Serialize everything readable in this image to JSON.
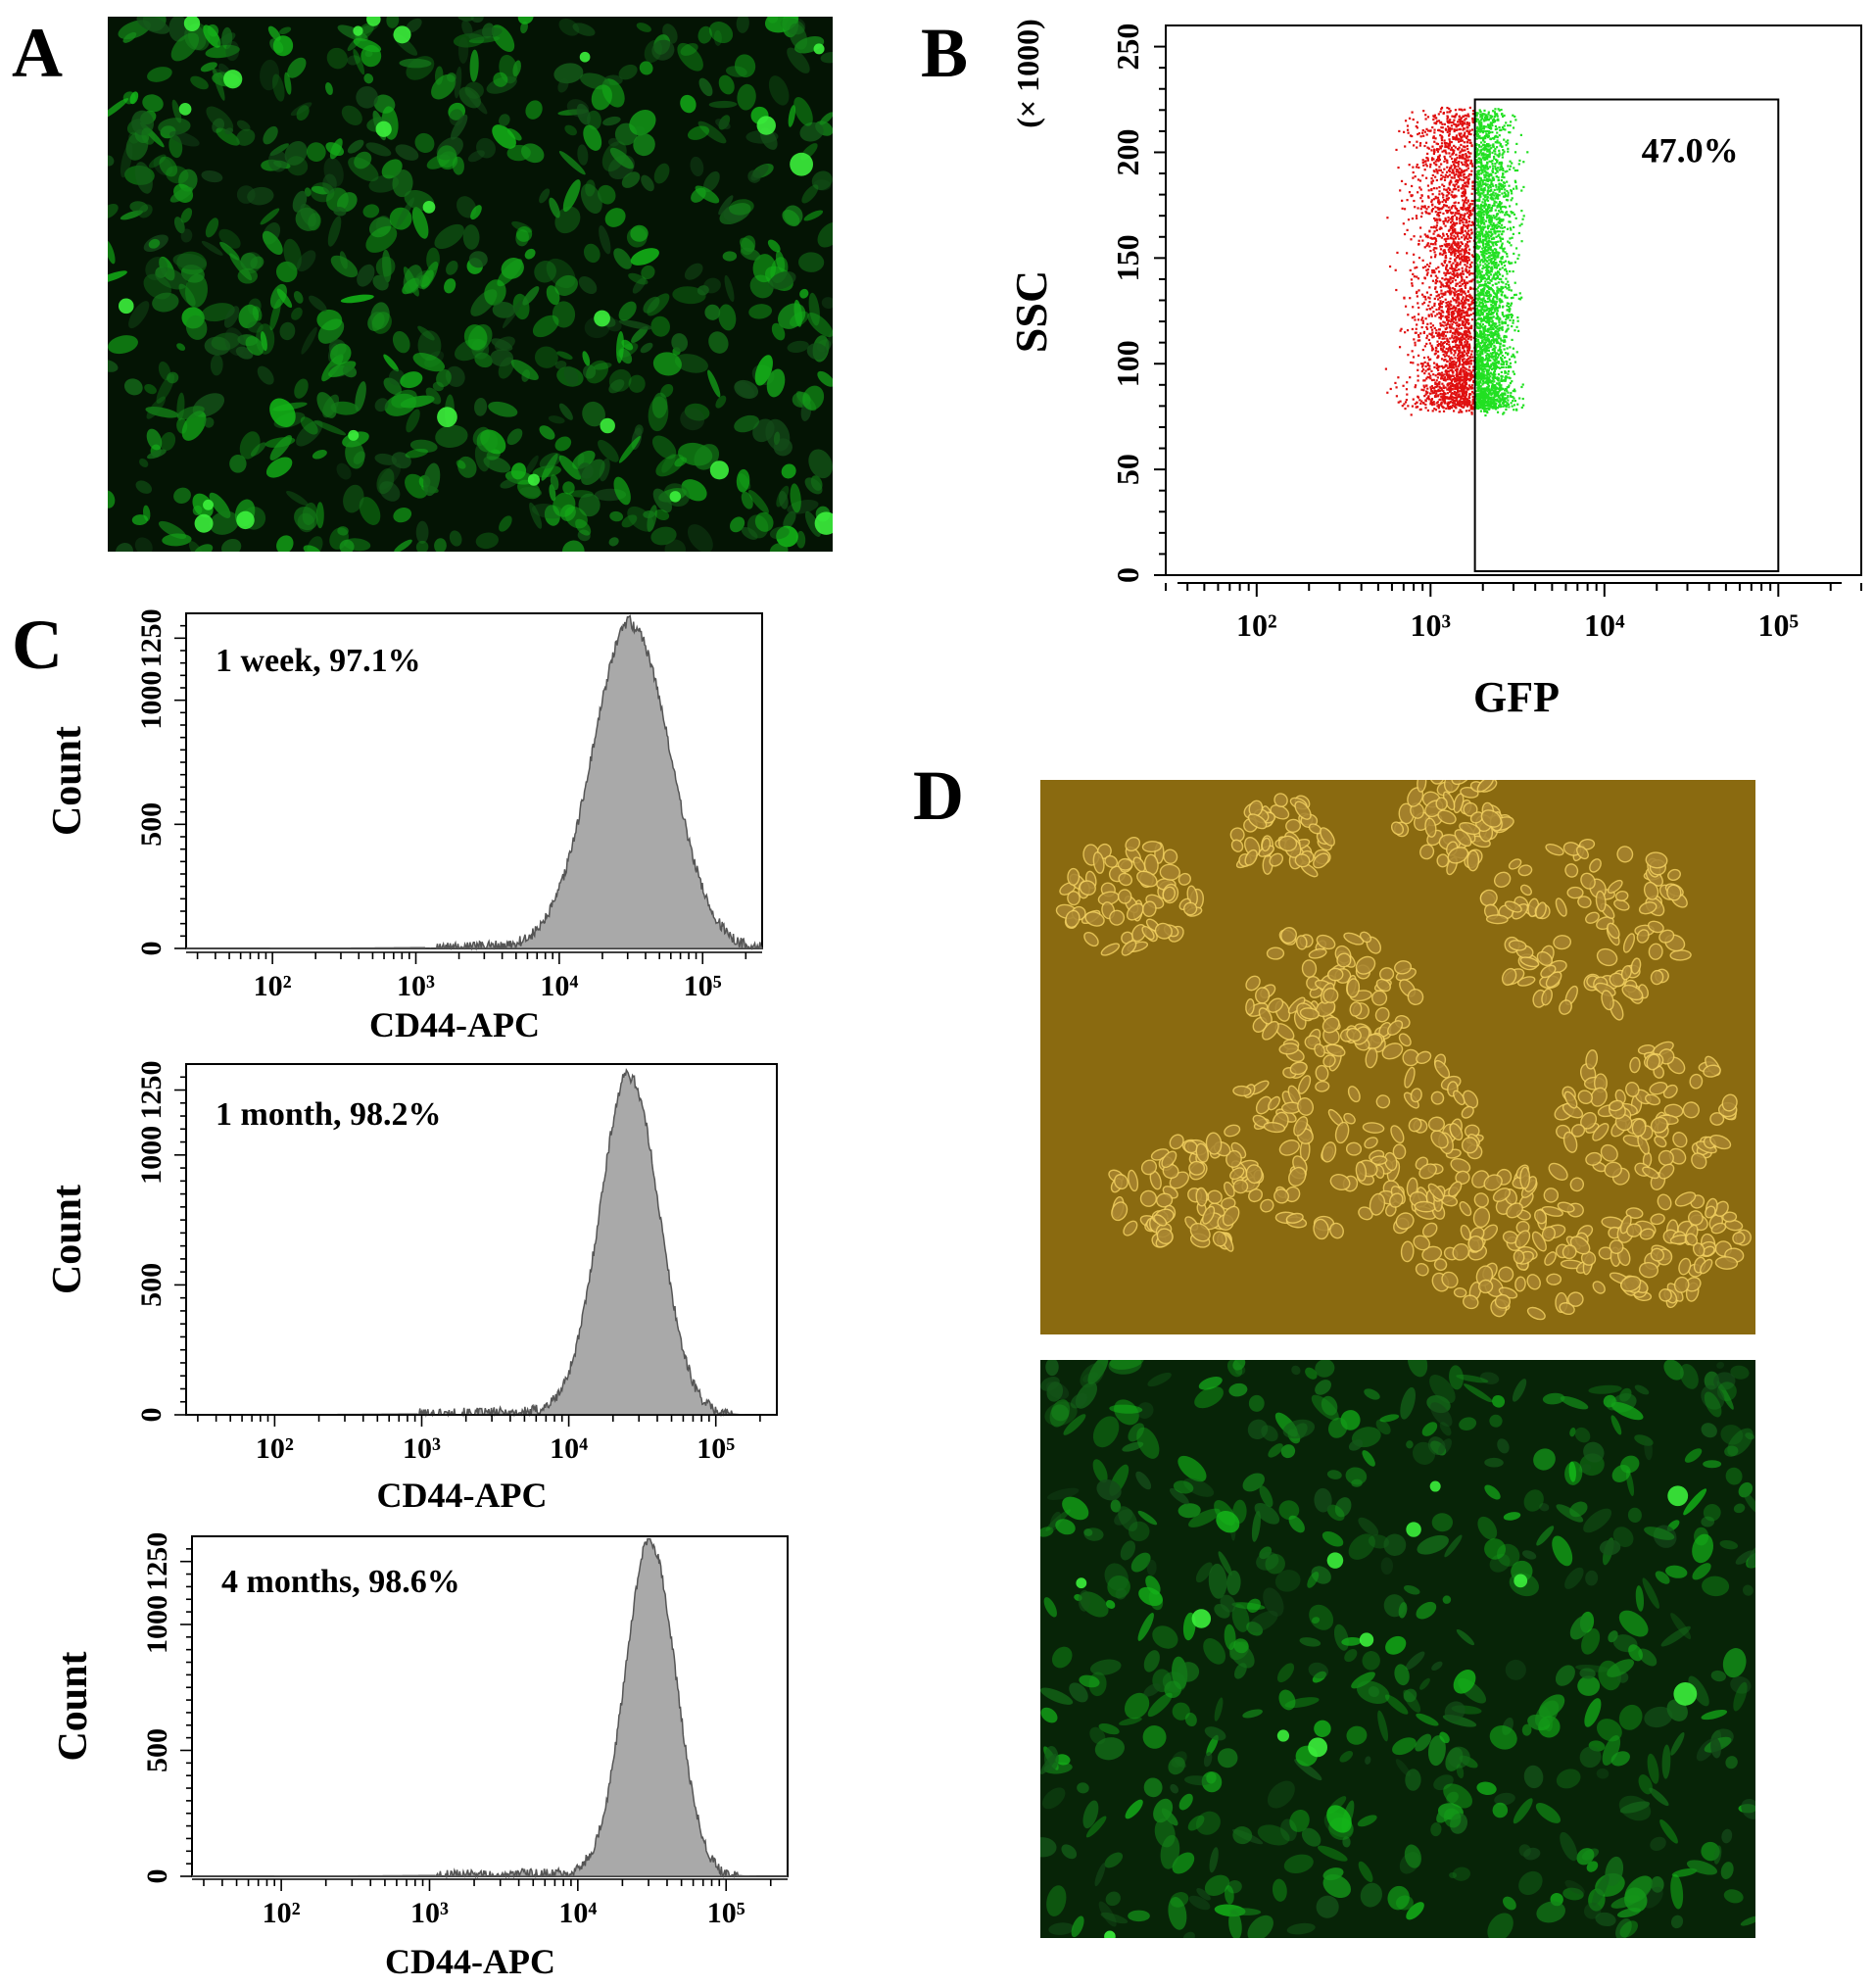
{
  "panels": {
    "A": {
      "label": "A"
    },
    "B": {
      "label": "B"
    },
    "C": {
      "label": "C"
    },
    "D": {
      "label": "D"
    }
  },
  "colors": {
    "gfp_positive": "#22e022",
    "gfp_negative": "#e01010",
    "histogram_fill": "#a9a9a9",
    "histogram_line": "#555555",
    "fluorescence_bg": "#041404",
    "brightfield_bg": "#8a6a10"
  },
  "chart_data": [
    {
      "type": "scatter",
      "panel": "B",
      "xlabel": "GFP",
      "ylabel": "SSC",
      "yunit": "(× 1000)",
      "x_scale": "log",
      "x_tick_labels": [
        "10²",
        "10³",
        "10⁴",
        "10⁵"
      ],
      "x_ticks": [
        100,
        1000,
        10000,
        100000
      ],
      "xlim": [
        30,
        300000
      ],
      "y_ticks": [
        0,
        50,
        100,
        150,
        200,
        250
      ],
      "ylim": [
        0,
        260
      ],
      "gate": {
        "x_range": [
          1800,
          100000
        ],
        "y_range": [
          0,
          225
        ],
        "label": "47.0%"
      },
      "series": [
        {
          "color": "red",
          "x_range": [
            200,
            1800
          ],
          "y_range": [
            80,
            220
          ]
        },
        {
          "color": "green",
          "x_range": [
            1800,
            8000
          ],
          "y_range": [
            80,
            220
          ]
        }
      ]
    },
    {
      "type": "area",
      "panel": "C",
      "annotation": "1 week, 97.1%",
      "xlabel": "CD44-APC",
      "ylabel": "Count",
      "x_scale": "log",
      "x_tick_labels": [
        "10²",
        "10³",
        "10⁴",
        "10⁵"
      ],
      "x_ticks": [
        100,
        1000,
        10000,
        100000
      ],
      "y_ticks": [
        0,
        500,
        1000,
        1250
      ],
      "ylim": [
        0,
        1350
      ],
      "peak_x": 32000,
      "peak_count": 1300,
      "spread_log": 0.27
    },
    {
      "type": "area",
      "panel": "C",
      "annotation": "1 month, 98.2%",
      "xlabel": "CD44-APC",
      "ylabel": "Count",
      "x_scale": "log",
      "x_tick_labels": [
        "10²",
        "10³",
        "10⁴",
        "10⁵"
      ],
      "x_ticks": [
        100,
        1000,
        10000,
        100000
      ],
      "y_ticks": [
        0,
        500,
        1000,
        1250
      ],
      "ylim": [
        0,
        1350
      ],
      "peak_x": 26000,
      "peak_count": 1300,
      "spread_log": 0.2
    },
    {
      "type": "area",
      "panel": "C",
      "annotation": "4 months, 98.6%",
      "xlabel": "CD44-APC",
      "ylabel": "Count",
      "x_scale": "log",
      "x_tick_labels": [
        "10²",
        "10³",
        "10⁴",
        "10⁵"
      ],
      "x_ticks": [
        100,
        1000,
        10000,
        100000
      ],
      "y_ticks": [
        0,
        500,
        1000,
        1250
      ],
      "ylim": [
        0,
        1350
      ],
      "peak_x": 31000,
      "peak_count": 1320,
      "spread_log": 0.17
    }
  ]
}
